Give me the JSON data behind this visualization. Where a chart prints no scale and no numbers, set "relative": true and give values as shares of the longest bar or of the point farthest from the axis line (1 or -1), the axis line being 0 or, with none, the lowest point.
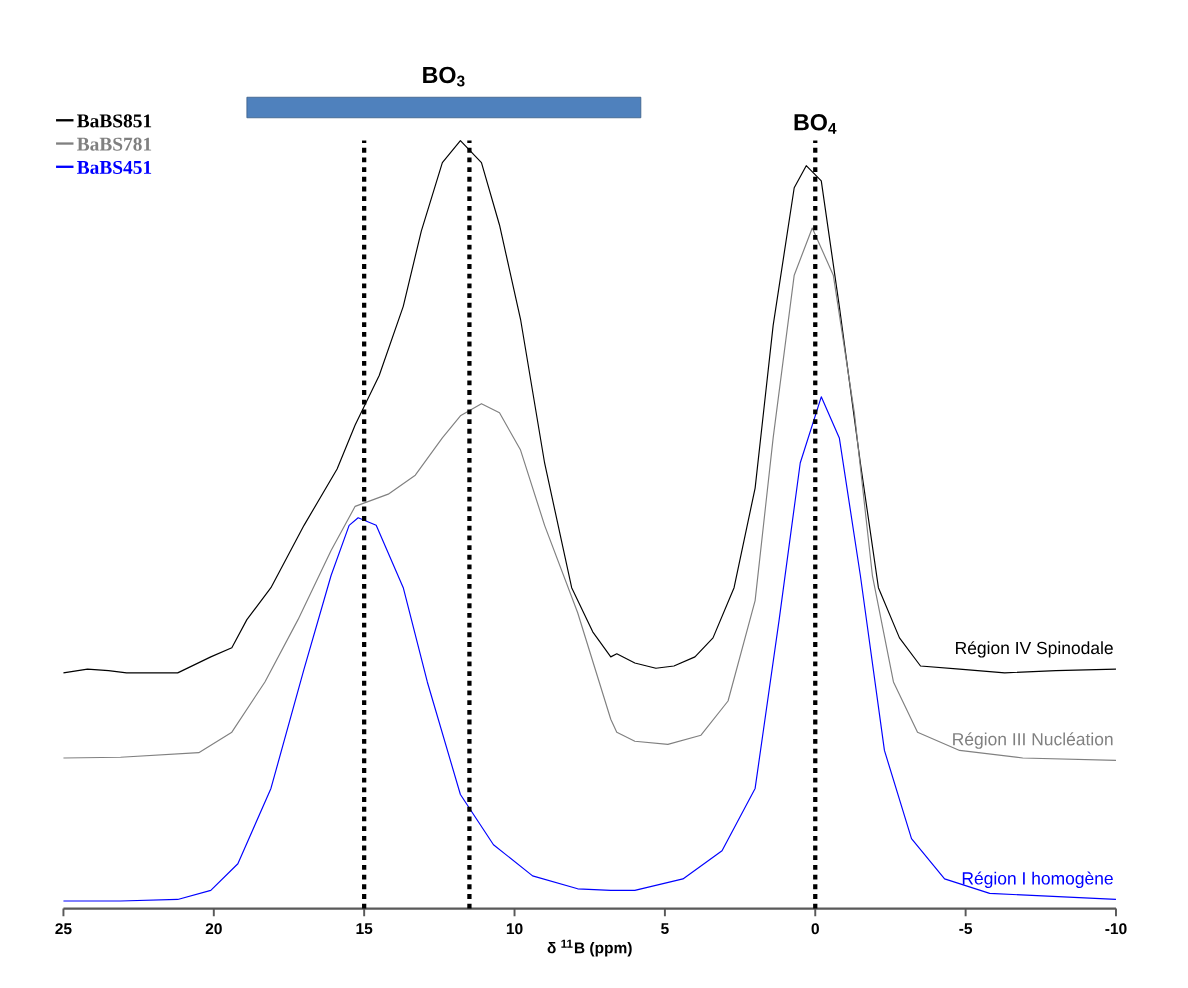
{
  "chart_data": {
    "type": "line",
    "relative": true,
    "xlabel": "δ $^{11}$B (ppm)",
    "xlim": [
      25,
      -10
    ],
    "xticks": [
      25,
      20,
      15,
      10,
      5,
      0,
      -5,
      -10
    ],
    "legend": "top left",
    "series": [
      {
        "name": "BaBS851",
        "color": "#000000",
        "x": [
          25,
          24.2,
          23.5,
          22.9,
          22.0,
          21.2,
          20.1,
          19.4,
          18.9,
          18.1,
          17.0,
          15.9,
          15.3,
          14.5,
          13.7,
          13.1,
          12.4,
          11.8,
          11.1,
          10.5,
          9.8,
          9.0,
          8.1,
          7.4,
          6.8,
          6.6,
          6.0,
          5.3,
          4.7,
          4.0,
          3.4,
          2.7,
          2.0,
          1.4,
          0.7,
          0.3,
          -0.2,
          -0.8,
          -1.5,
          -2.1,
          -2.8,
          -3.5,
          -4.8,
          -6.3,
          -8.0,
          -10
        ],
        "values": [
          0.3,
          0.305,
          0.303,
          0.3,
          0.3,
          0.3,
          0.321,
          0.333,
          0.37,
          0.412,
          0.494,
          0.568,
          0.626,
          0.691,
          0.782,
          0.881,
          0.971,
          1.0,
          0.971,
          0.889,
          0.765,
          0.576,
          0.412,
          0.354,
          0.321,
          0.325,
          0.313,
          0.306,
          0.309,
          0.321,
          0.346,
          0.412,
          0.543,
          0.757,
          0.938,
          0.967,
          0.947,
          0.782,
          0.576,
          0.412,
          0.346,
          0.309,
          0.305,
          0.3,
          0.303,
          0.305
        ]
      },
      {
        "name": "BaBS781",
        "color": "#808080",
        "x": [
          25,
          23.1,
          20.5,
          19.4,
          18.3,
          17.2,
          16.1,
          15.3,
          14.2,
          13.3,
          12.4,
          11.8,
          11.1,
          10.5,
          9.8,
          9.0,
          7.9,
          6.8,
          6.6,
          6.0,
          4.9,
          3.8,
          2.9,
          2.0,
          1.4,
          0.7,
          0.1,
          -0.6,
          -1.3,
          -1.9,
          -2.6,
          -3.4,
          -4.8,
          -6.9,
          -10
        ],
        "values": [
          0.188,
          0.189,
          0.195,
          0.222,
          0.288,
          0.37,
          0.461,
          0.519,
          0.535,
          0.56,
          0.609,
          0.638,
          0.654,
          0.642,
          0.593,
          0.494,
          0.379,
          0.239,
          0.222,
          0.21,
          0.206,
          0.218,
          0.263,
          0.395,
          0.609,
          0.823,
          0.885,
          0.823,
          0.642,
          0.428,
          0.288,
          0.222,
          0.198,
          0.188,
          0.185
        ]
      },
      {
        "name": "BaBS451",
        "color": "#0000ff",
        "x": [
          25,
          23.1,
          21.2,
          20.1,
          19.2,
          18.1,
          17.0,
          16.1,
          15.5,
          15.2,
          14.6,
          13.7,
          12.9,
          11.8,
          10.7,
          9.4,
          7.9,
          6.8,
          6.0,
          4.4,
          3.1,
          2.0,
          1.2,
          0.5,
          -0.2,
          -0.8,
          -1.5,
          -2.3,
          -3.2,
          -4.3,
          -5.8,
          -10
        ],
        "values": [
          0,
          0,
          0.002,
          0.014,
          0.049,
          0.148,
          0.305,
          0.428,
          0.494,
          0.504,
          0.494,
          0.412,
          0.288,
          0.14,
          0.074,
          0.033,
          0.016,
          0.014,
          0.014,
          0.029,
          0.066,
          0.148,
          0.37,
          0.576,
          0.663,
          0.609,
          0.428,
          0.198,
          0.082,
          0.029,
          0.01,
          0.002
        ]
      }
    ],
    "ref_lines": [
      {
        "axis": "x",
        "value": 15,
        "color": "#000000",
        "line_style": "dotted"
      },
      {
        "axis": "x",
        "value": 11.5,
        "color": "#000000",
        "line_style": "dotted"
      },
      {
        "axis": "x",
        "value": 0,
        "color": "#000000",
        "line_style": "dotted",
        "label": "BO$_{4}$"
      }
    ],
    "annotations": [
      "Région IV Spinodale",
      "Région III Nucléation",
      "Région I homogène",
      "BO$_{3}$"
    ]
  }
}
